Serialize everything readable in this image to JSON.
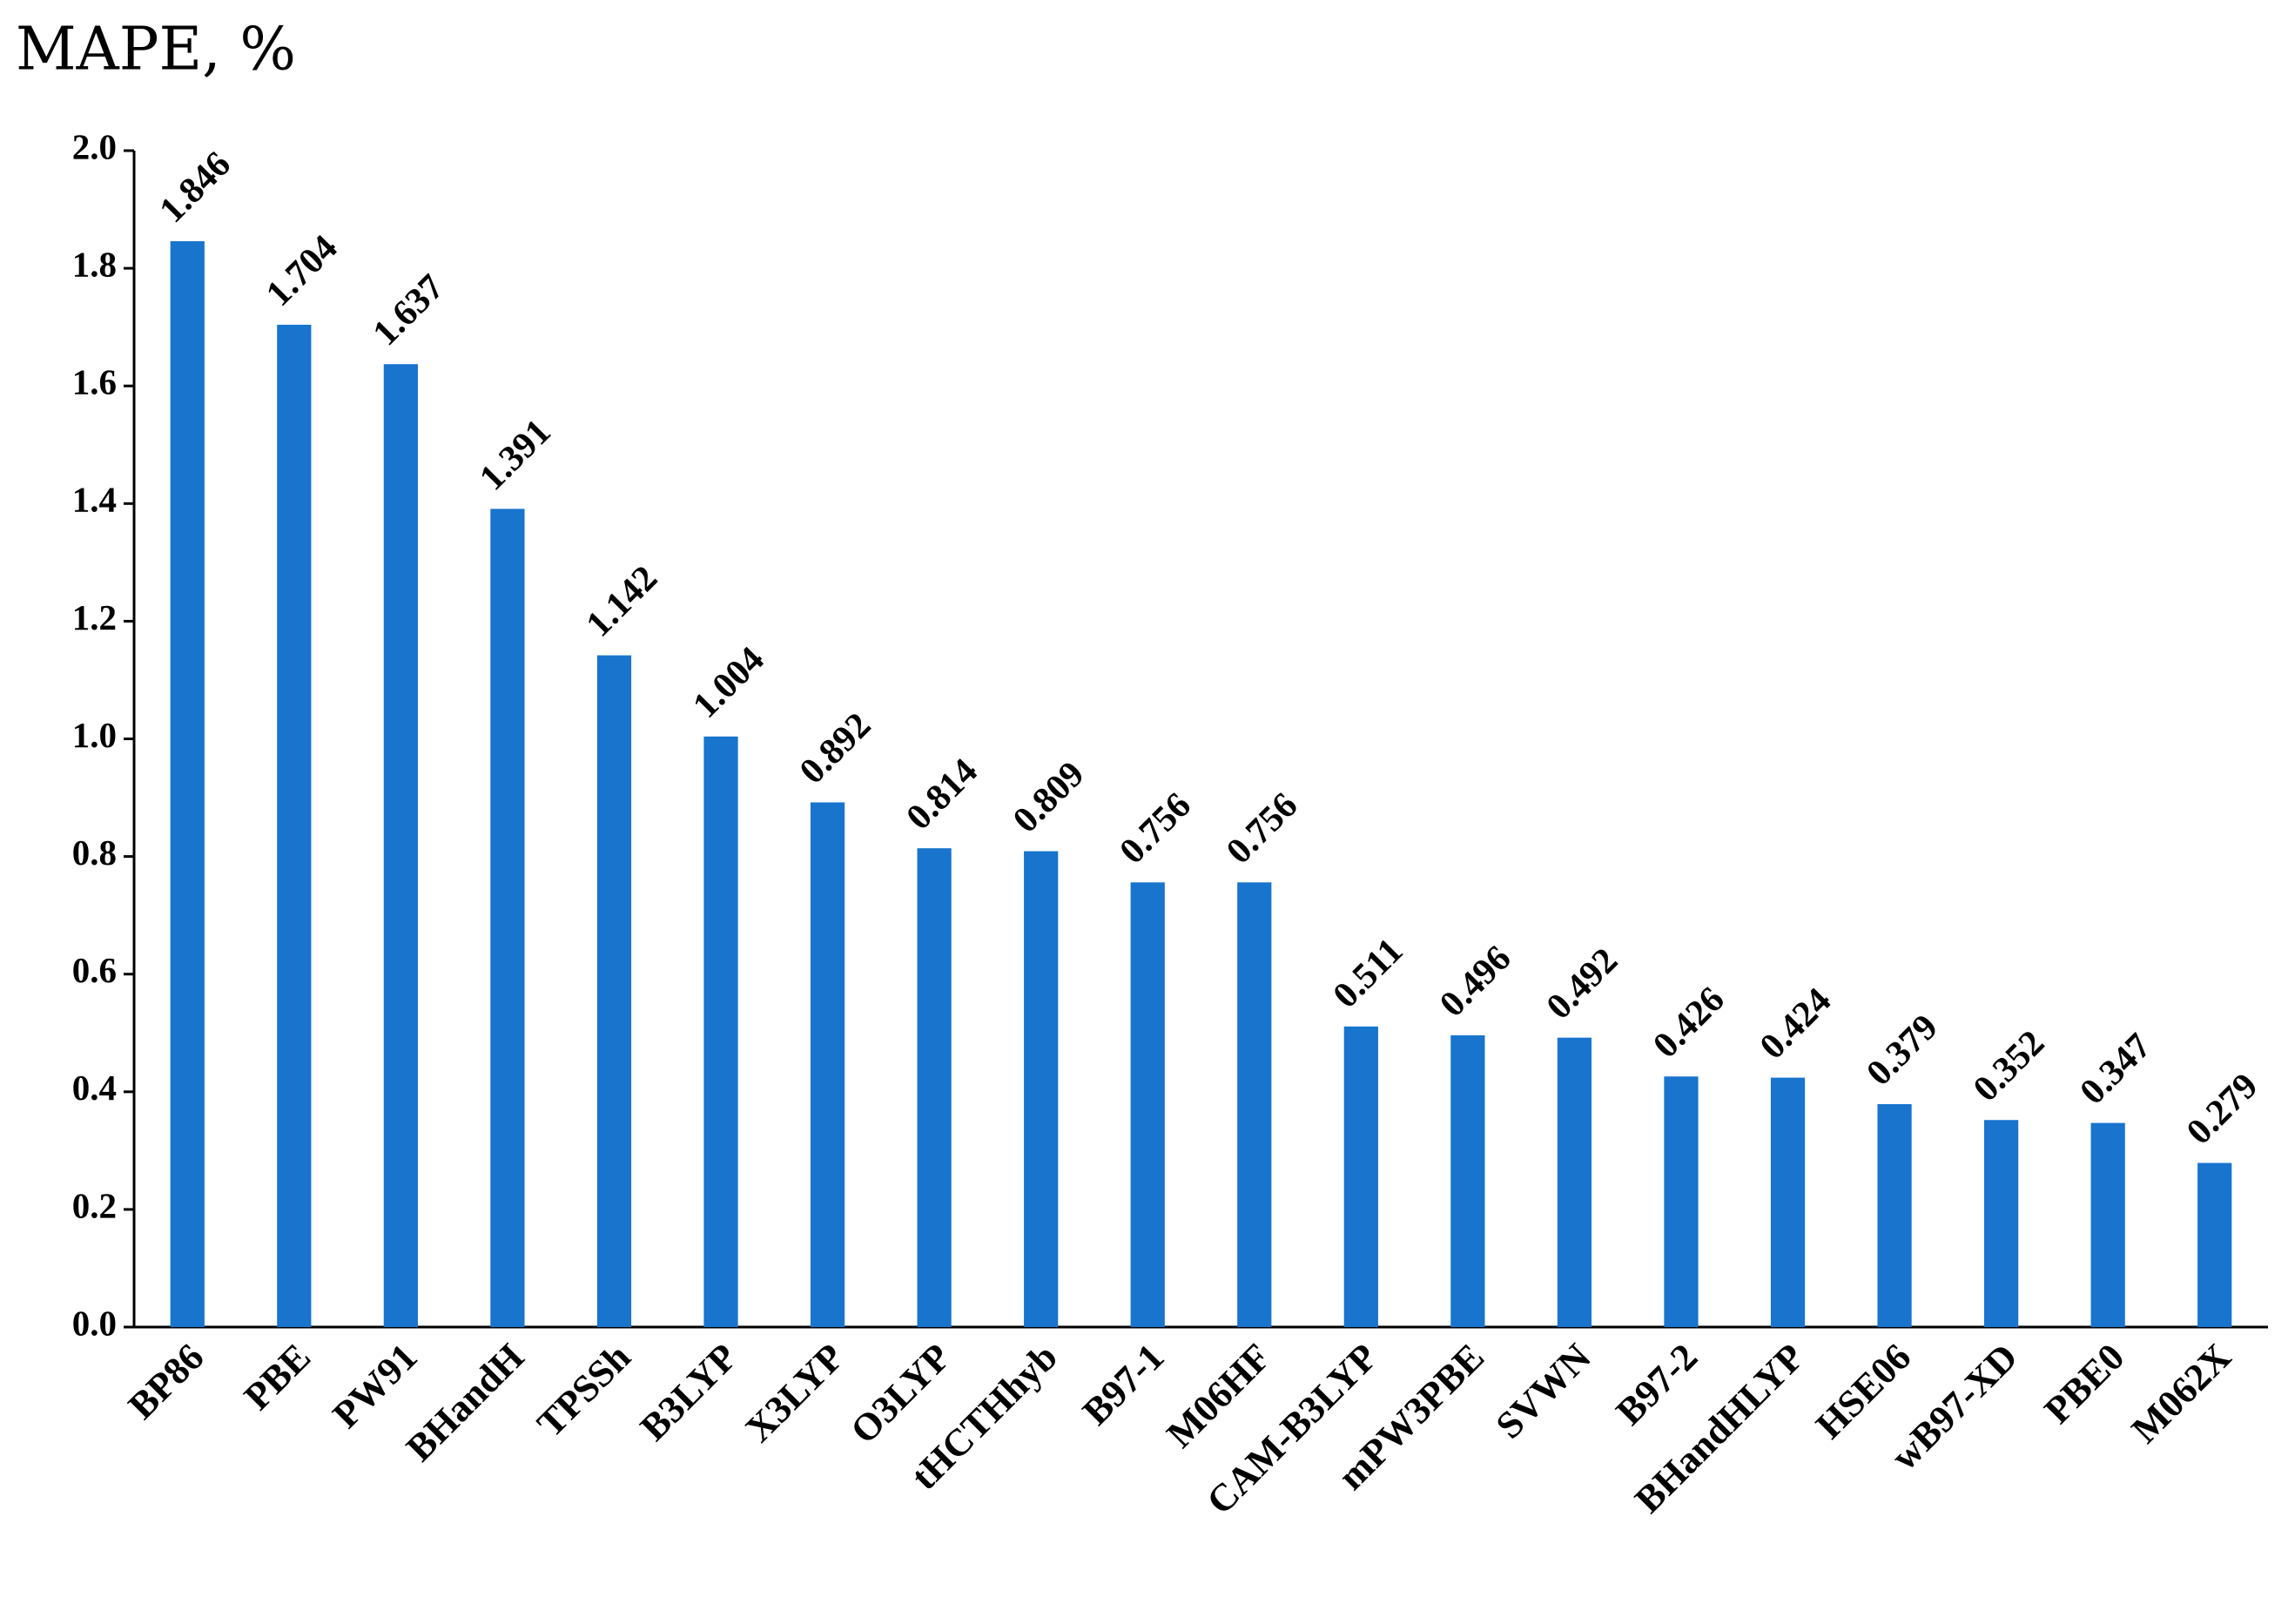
{
  "chart_data": {
    "type": "bar",
    "title": "MAPE, %",
    "categories": [
      "BP86",
      "PBE",
      "PW91",
      "BHandH",
      "TPSSh",
      "B3LYP",
      "X3LYP",
      "O3LYP",
      "tHCTHhyb",
      "B97-1",
      "M06HF",
      "CAM-B3LYP",
      "mPW3PBE",
      "SVWN",
      "B97-2",
      "BHandHLYP",
      "HSE06",
      "wB97-XD",
      "PBE0",
      "M062X"
    ],
    "values": [
      1.846,
      1.704,
      1.637,
      1.391,
      1.142,
      1.004,
      0.892,
      0.814,
      0.809,
      0.756,
      0.756,
      0.511,
      0.496,
      0.492,
      0.426,
      0.424,
      0.379,
      0.352,
      0.347,
      0.279
    ],
    "color": "#1874cd",
    "ylim": [
      0,
      2
    ],
    "yticks": [
      {
        "value": 0,
        "label": "0.0"
      },
      0.2,
      0.4,
      0.6,
      0.8,
      {
        "value": 1,
        "label": "1.0"
      },
      1.2,
      1.4,
      1.6,
      1.8,
      {
        "value": 2,
        "label": "2.0"
      }
    ],
    "grid": false
  }
}
